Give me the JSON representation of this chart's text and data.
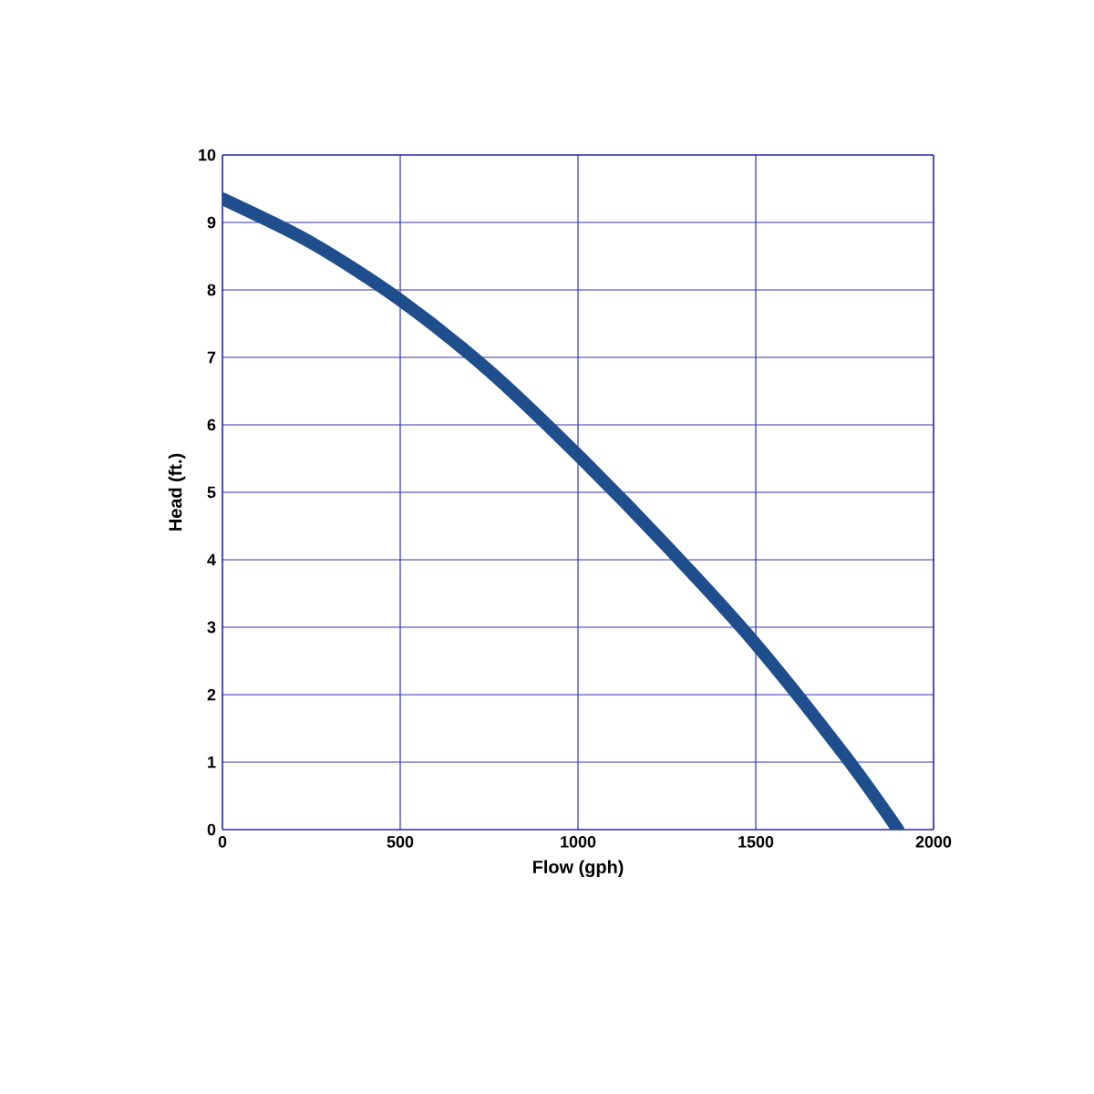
{
  "chart_data": {
    "type": "line",
    "xlabel": "Flow (gph)",
    "ylabel": "Head (ft.)",
    "x": [
      0,
      250,
      500,
      750,
      1000,
      1250,
      1500,
      1750,
      1900
    ],
    "series": [
      {
        "color": "#1f4e8c",
        "values": [
          9.35,
          8.7,
          7.85,
          6.8,
          5.55,
          4.2,
          2.75,
          1.1,
          0
        ]
      }
    ],
    "xlim": [
      0,
      2000
    ],
    "ylim": [
      0,
      10
    ],
    "xticks": [
      0,
      500,
      1000,
      1500,
      2000
    ],
    "yticks": [
      0,
      1,
      2,
      3,
      4,
      5,
      6,
      7,
      8,
      9,
      10
    ],
    "grid": true,
    "marker": "none",
    "line_style": "solid"
  }
}
